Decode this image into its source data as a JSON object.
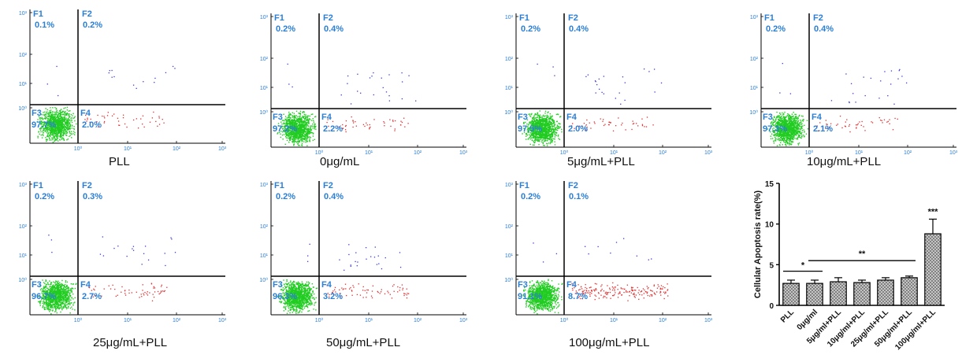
{
  "colors": {
    "live": "#22cc22",
    "early_apoptotic": "#e03030",
    "late_apoptotic": "#3a3adc",
    "label": "#2a7fd6",
    "bar_fill": "#cfcfcf"
  },
  "chart_data": [
    {
      "type": "scatter",
      "panel_label": "PLL",
      "quadrants": {
        "F1": "0.1%",
        "F2": "0.2%",
        "F3": "97.7%",
        "F4": "2.0%"
      },
      "x_ticks": [
        "10⁰",
        "10¹",
        "10²",
        "10³"
      ],
      "y_ticks": [
        "10³",
        "10²",
        "10¹",
        "10⁰"
      ],
      "log_scale": true
    },
    {
      "type": "scatter",
      "panel_label": "0μg/mL",
      "quadrants": {
        "F1": "0.2%",
        "F2": "0.4%",
        "F3": "97.2%",
        "F4": "2.2%"
      },
      "x_ticks": [
        "10⁰",
        "10¹",
        "10²",
        "10³"
      ],
      "y_ticks": [
        "10³",
        "10²",
        "10¹",
        "10⁰"
      ],
      "log_scale": true
    },
    {
      "type": "scatter",
      "panel_label": "5μg/mL+PLL",
      "quadrants": {
        "F1": "0.2%",
        "F2": "0.4%",
        "F3": "97.5%",
        "F4": "2.0%"
      },
      "x_ticks": [
        "10⁰",
        "10¹",
        "10²",
        "10³"
      ],
      "y_ticks": [
        "10³",
        "10²",
        "10¹",
        "10⁰"
      ],
      "log_scale": true
    },
    {
      "type": "scatter",
      "panel_label": "10μg/mL+PLL",
      "quadrants": {
        "F1": "0.2%",
        "F2": "0.4%",
        "F3": "97.3%",
        "F4": "2.1%"
      },
      "x_ticks": [
        "10⁰",
        "10¹",
        "10²",
        "10³"
      ],
      "y_ticks": [
        "10³",
        "10²",
        "10¹",
        "10⁰"
      ],
      "log_scale": true
    },
    {
      "type": "scatter",
      "panel_label": "25μg/mL+PLL",
      "quadrants": {
        "F1": "0.2%",
        "F2": "0.3%",
        "F3": "96.7%",
        "F4": "2.7%"
      },
      "x_ticks": [
        "10⁰",
        "10¹",
        "10²",
        "10³"
      ],
      "y_ticks": [
        "10³",
        "10²",
        "10¹",
        "10⁰"
      ],
      "log_scale": true
    },
    {
      "type": "scatter",
      "panel_label": "50μg/mL+PLL",
      "quadrants": {
        "F1": "0.2%",
        "F2": "0.4%",
        "F3": "96.3%",
        "F4": "3.2%"
      },
      "x_ticks": [
        "10⁰",
        "10¹",
        "10²",
        "10³"
      ],
      "y_ticks": [
        "10³",
        "10²",
        "10¹",
        "10⁰"
      ],
      "log_scale": true
    },
    {
      "type": "scatter",
      "panel_label": "100μg/mL+PLL",
      "quadrants": {
        "F1": "0.2%",
        "F2": "0.1%",
        "F3": "91.1%",
        "F4": "8.7%"
      },
      "x_ticks": [
        "10⁰",
        "10¹",
        "10²",
        "10³"
      ],
      "y_ticks": [
        "10³",
        "10²",
        "10¹",
        "10⁰"
      ],
      "log_scale": true
    },
    {
      "type": "bar",
      "ylabel": "Cellular Apoptosis rate(%)",
      "ylim": [
        0,
        15
      ],
      "yticks": [
        0,
        5,
        10,
        15
      ],
      "categories": [
        "PLL",
        "0μg/ml",
        "5μg/ml+PLL",
        "10μg/ml+PLL",
        "25μg/ml+PLL",
        "50μg/ml+PLL",
        "100μg/ml+PLL"
      ],
      "values": [
        2.7,
        2.7,
        2.9,
        2.8,
        3.1,
        3.4,
        8.8
      ],
      "errors": [
        0.4,
        0.4,
        0.5,
        0.3,
        0.3,
        0.2,
        1.8
      ],
      "annotations": {
        "single": "*",
        "double": "**",
        "triple": "***"
      }
    }
  ]
}
